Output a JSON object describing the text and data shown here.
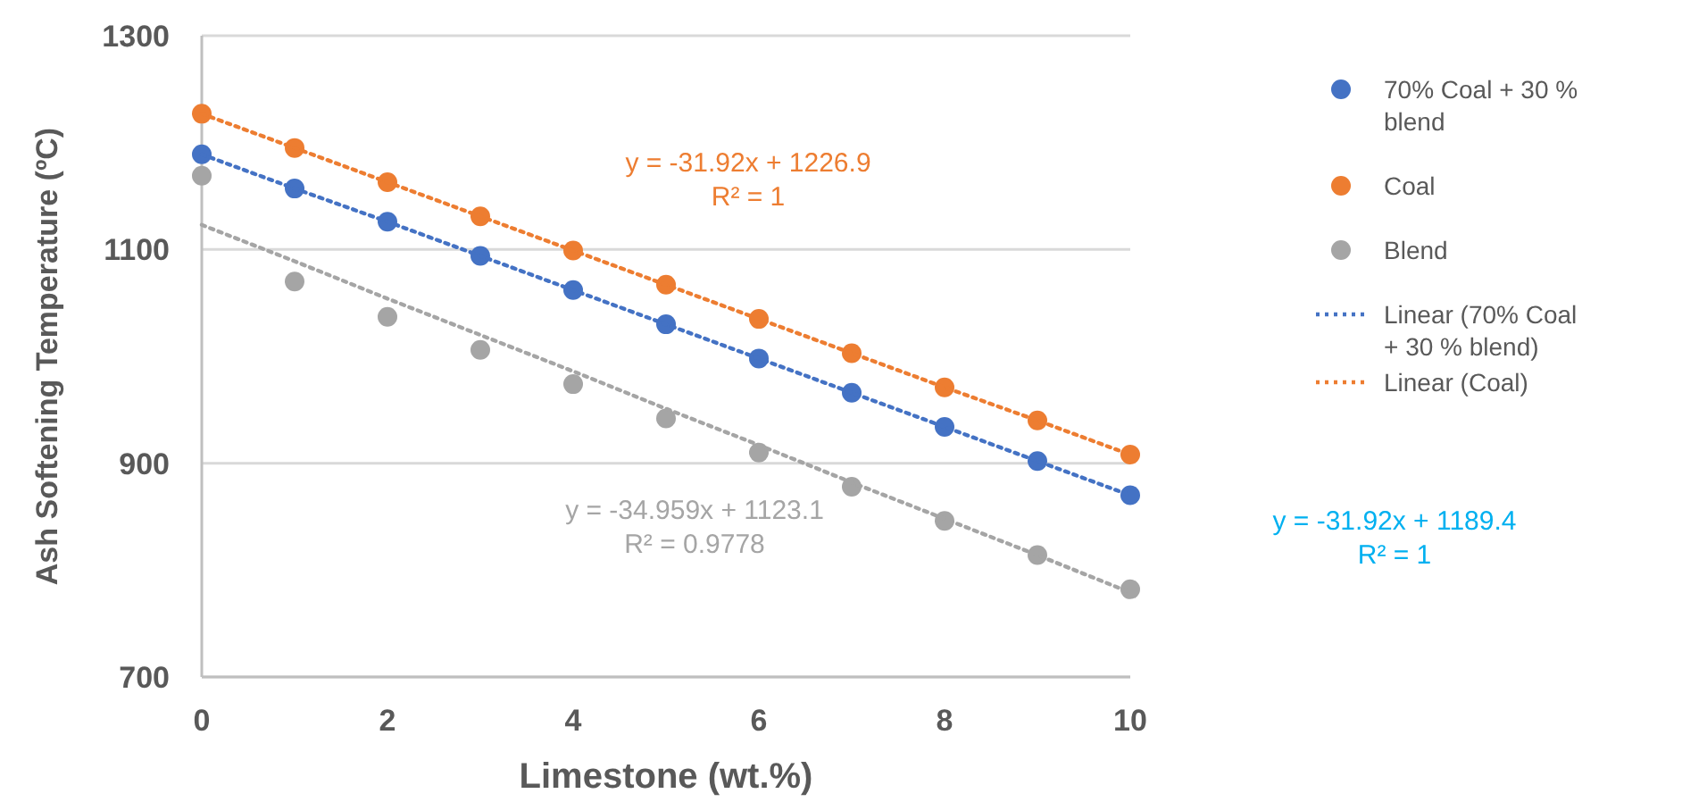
{
  "chart_data": {
    "type": "scatter",
    "xlabel": "Limestone (wt.%)",
    "ylabel": "Ash Softening Temperature (ºC)",
    "x": [
      0,
      1,
      2,
      3,
      4,
      5,
      6,
      7,
      8,
      9,
      10
    ],
    "series": [
      {
        "name": "70% Coal + 30 % blend",
        "color": "#4472c4",
        "marker": "circle",
        "values": [
          1189,
          1157,
          1126,
          1094,
          1062,
          1030,
          998,
          966,
          934,
          902,
          870
        ]
      },
      {
        "name": "Coal",
        "color": "#ed7d31",
        "marker": "circle",
        "values": [
          1227,
          1195,
          1163,
          1131,
          1099,
          1067,
          1035,
          1003,
          971,
          940,
          908
        ]
      },
      {
        "name": "Blend",
        "color": "#a5a5a5",
        "marker": "circle",
        "values": [
          1169,
          1070,
          1037,
          1006,
          974,
          942,
          910,
          878,
          846,
          814,
          782
        ]
      },
      {
        "name": "Linear (70% Coal + 30 % blend)",
        "type": "line",
        "color": "#4472c4",
        "values": [
          1189,
          1157,
          1126,
          1094,
          1062,
          1030,
          998,
          966,
          934,
          902,
          870
        ],
        "line_style": "dotted"
      },
      {
        "name": "Linear (Coal)",
        "type": "line",
        "color": "#ed7d31",
        "values": [
          1227,
          1195,
          1163,
          1131,
          1099,
          1067,
          1035,
          1003,
          971,
          940,
          908
        ],
        "line_style": "dotted"
      },
      {
        "type": "line",
        "color": "#a5a5a5",
        "values": [
          1123,
          1089,
          1054,
          1020,
          986,
          951,
          917,
          882,
          848,
          814,
          779
        ],
        "line_style": "dotted"
      }
    ],
    "xlim": [
      0,
      10
    ],
    "xticks": [
      0,
      2,
      4,
      6,
      8,
      10
    ],
    "ylim": [
      700,
      1300
    ],
    "yticks": [
      700,
      900,
      1100,
      1300
    ],
    "grid": "y",
    "legend": "right",
    "annotations": [
      "y = -31.92x + 1226.9\nR² = 1",
      "y = -34.959x + 1123.1\nR² = 0.9778",
      "y = -31.92x + 1189.4\nR² = 1"
    ]
  }
}
